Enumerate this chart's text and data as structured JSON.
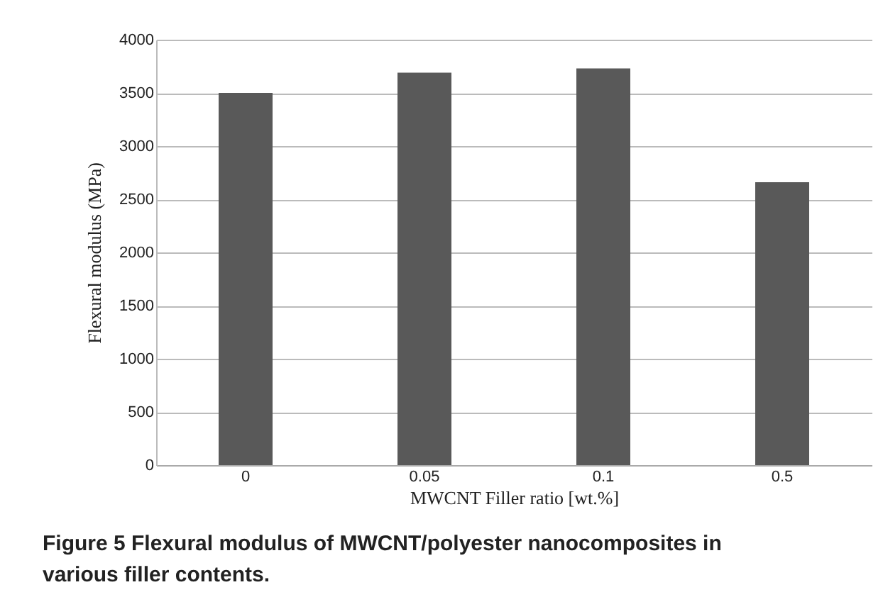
{
  "chart_data": {
    "type": "bar",
    "categories": [
      "0",
      "0.05",
      "0.1",
      "0.5"
    ],
    "values": [
      3500,
      3690,
      3730,
      2660
    ],
    "color": "#595959",
    "xlabel": "MWCNT Filler ratio [wt.%]",
    "ylabel": "Flexural modulus (MPa)",
    "ylim": [
      0,
      4000
    ],
    "yticks": [
      0,
      500,
      1000,
      1500,
      2000,
      2500,
      3000,
      3500,
      4000
    ],
    "grid": "y",
    "annotations": [
      "Figure 5 Flexural modulus of MWCNT/polyester nanocomposites in various filler contents."
    ]
  }
}
